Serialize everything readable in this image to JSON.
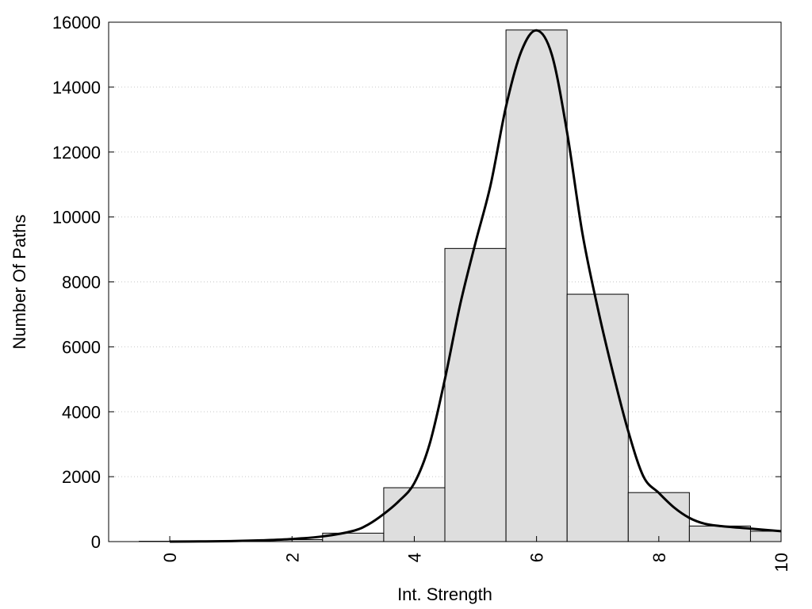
{
  "chart_data": {
    "type": "bar",
    "title": "",
    "xlabel": "Int. Strength",
    "ylabel": "Number Of Paths",
    "xlim": [
      -1,
      10
    ],
    "ylim": [
      0,
      16000
    ],
    "x_ticks": [
      0,
      2,
      4,
      6,
      8,
      10
    ],
    "y_ticks": [
      0,
      2000,
      4000,
      6000,
      8000,
      10000,
      12000,
      14000,
      16000
    ],
    "grid": "horizontal dotted",
    "legend": "none",
    "bar_width": 1,
    "bars": {
      "x": [
        0,
        1,
        2,
        3,
        4,
        5,
        6,
        7,
        8,
        9,
        10
      ],
      "values": [
        10,
        20,
        60,
        260,
        1660,
        9030,
        15760,
        7620,
        1510,
        480,
        320
      ]
    },
    "fit_curve": {
      "x": [
        0,
        0.5,
        1,
        1.5,
        2,
        2.5,
        3,
        3.25,
        3.5,
        3.75,
        4,
        4.25,
        4.5,
        4.75,
        5,
        5.25,
        5.5,
        5.75,
        6,
        6.25,
        6.5,
        6.75,
        7,
        7.25,
        7.5,
        7.75,
        8,
        8.25,
        8.5,
        8.75,
        9,
        9.5,
        10
      ],
      "y": [
        0,
        5,
        15,
        40,
        80,
        160,
        330,
        530,
        850,
        1250,
        1800,
        3000,
        5000,
        7300,
        9200,
        11000,
        13400,
        15100,
        15750,
        15000,
        12600,
        9500,
        7200,
        5200,
        3400,
        2000,
        1500,
        1050,
        730,
        550,
        480,
        400,
        320
      ]
    },
    "colors": {
      "bar_fill": "#dedede",
      "bar_stroke": "#000000",
      "curve": "#000000",
      "grid": "#c8c8c8"
    }
  }
}
